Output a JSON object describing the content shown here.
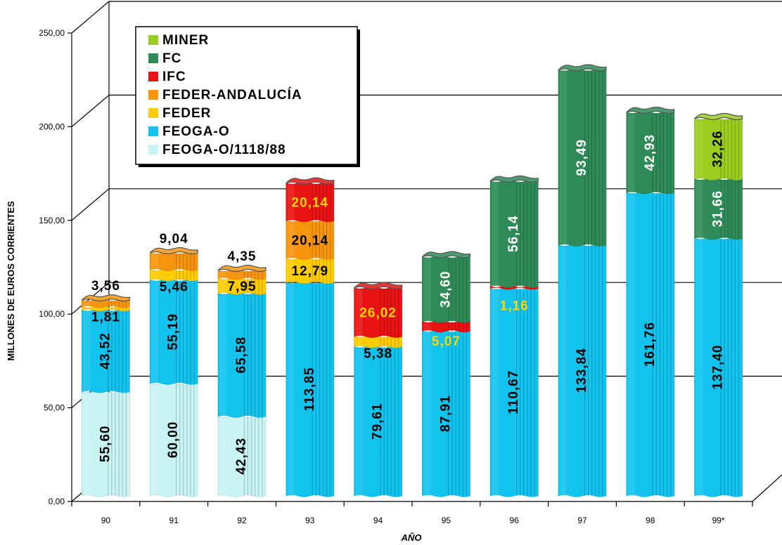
{
  "chart_data": {
    "type": "bar",
    "stacked": true,
    "title": "",
    "xlabel": "AÑO",
    "ylabel": "MILLONES DE EUROS CORRIENTES",
    "ylim": [
      0,
      250
    ],
    "yticks": [
      "0,00",
      "50,00",
      "100,00",
      "150,00",
      "200,00",
      "250,00"
    ],
    "grid": true,
    "legend_position": "top-left",
    "categories": [
      "90",
      "91",
      "92",
      "93",
      "94",
      "95",
      "96",
      "97",
      "98",
      "99*"
    ],
    "series": [
      {
        "name": "FEOGA-O/1118/88",
        "color": "#c8f4f4",
        "values": [
          55.6,
          60.0,
          42.43,
          0,
          0,
          0,
          0,
          0,
          0,
          0
        ],
        "labels": [
          "55,60",
          "60,00",
          "42,43",
          "",
          "",
          "",
          "",
          "",
          "",
          ""
        ]
      },
      {
        "name": "FEOGA-O",
        "color": "#12c3ee",
        "values": [
          43.52,
          55.19,
          65.58,
          113.85,
          79.61,
          87.91,
          110.67,
          133.84,
          161.76,
          137.4
        ],
        "labels": [
          "43,52",
          "55,19",
          "65,58",
          "113,85",
          "79,61",
          "87,91",
          "110,67",
          "133,84",
          "161,76",
          "137,40"
        ]
      },
      {
        "name": "FEDER",
        "color": "#ffcc00",
        "values": [
          1.81,
          5.46,
          7.95,
          12.79,
          5.38,
          0,
          0,
          0,
          0,
          0
        ],
        "labels": [
          "1,81",
          "5,46",
          "7,95",
          "12,79",
          "5,38",
          "",
          "",
          "",
          "",
          ""
        ]
      },
      {
        "name": "FEDER-ANDALUCÍA",
        "color": "#f7950f",
        "values": [
          3.56,
          9.04,
          4.35,
          20.14,
          0,
          0,
          0,
          0,
          0,
          0
        ],
        "labels": [
          "3,56",
          "9,04",
          "4,35",
          "20,14",
          "",
          "",
          "",
          "",
          "",
          ""
        ]
      },
      {
        "name": "IFC",
        "color": "#e81212",
        "values": [
          0,
          0,
          0,
          20.14,
          26.02,
          5.07,
          1.16,
          0,
          0,
          0
        ],
        "labels": [
          "",
          "",
          "",
          "20,14",
          "26,02",
          "5,07",
          "1,16",
          "",
          "",
          ""
        ]
      },
      {
        "name": "FC",
        "color": "#2e8b57",
        "values": [
          0,
          0,
          0,
          0,
          0,
          34.6,
          56.14,
          93.49,
          42.93,
          31.66
        ],
        "labels": [
          "",
          "",
          "",
          "",
          "",
          "34,60",
          "56,14",
          "93,49",
          "42,93",
          "31,66"
        ]
      },
      {
        "name": "MINER",
        "color": "#9acd1e",
        "values": [
          0,
          0,
          0,
          0,
          0,
          0,
          0,
          0,
          0,
          32.26
        ],
        "labels": [
          "",
          "",
          "",
          "",
          "",
          "",
          "",
          "",
          "",
          "32,26"
        ]
      }
    ],
    "legend_order": [
      "MINER",
      "FC",
      "IFC",
      "FEDER-ANDALUCÍA",
      "FEDER",
      "FEOGA-O",
      "FEOGA-O/1118/88"
    ]
  }
}
